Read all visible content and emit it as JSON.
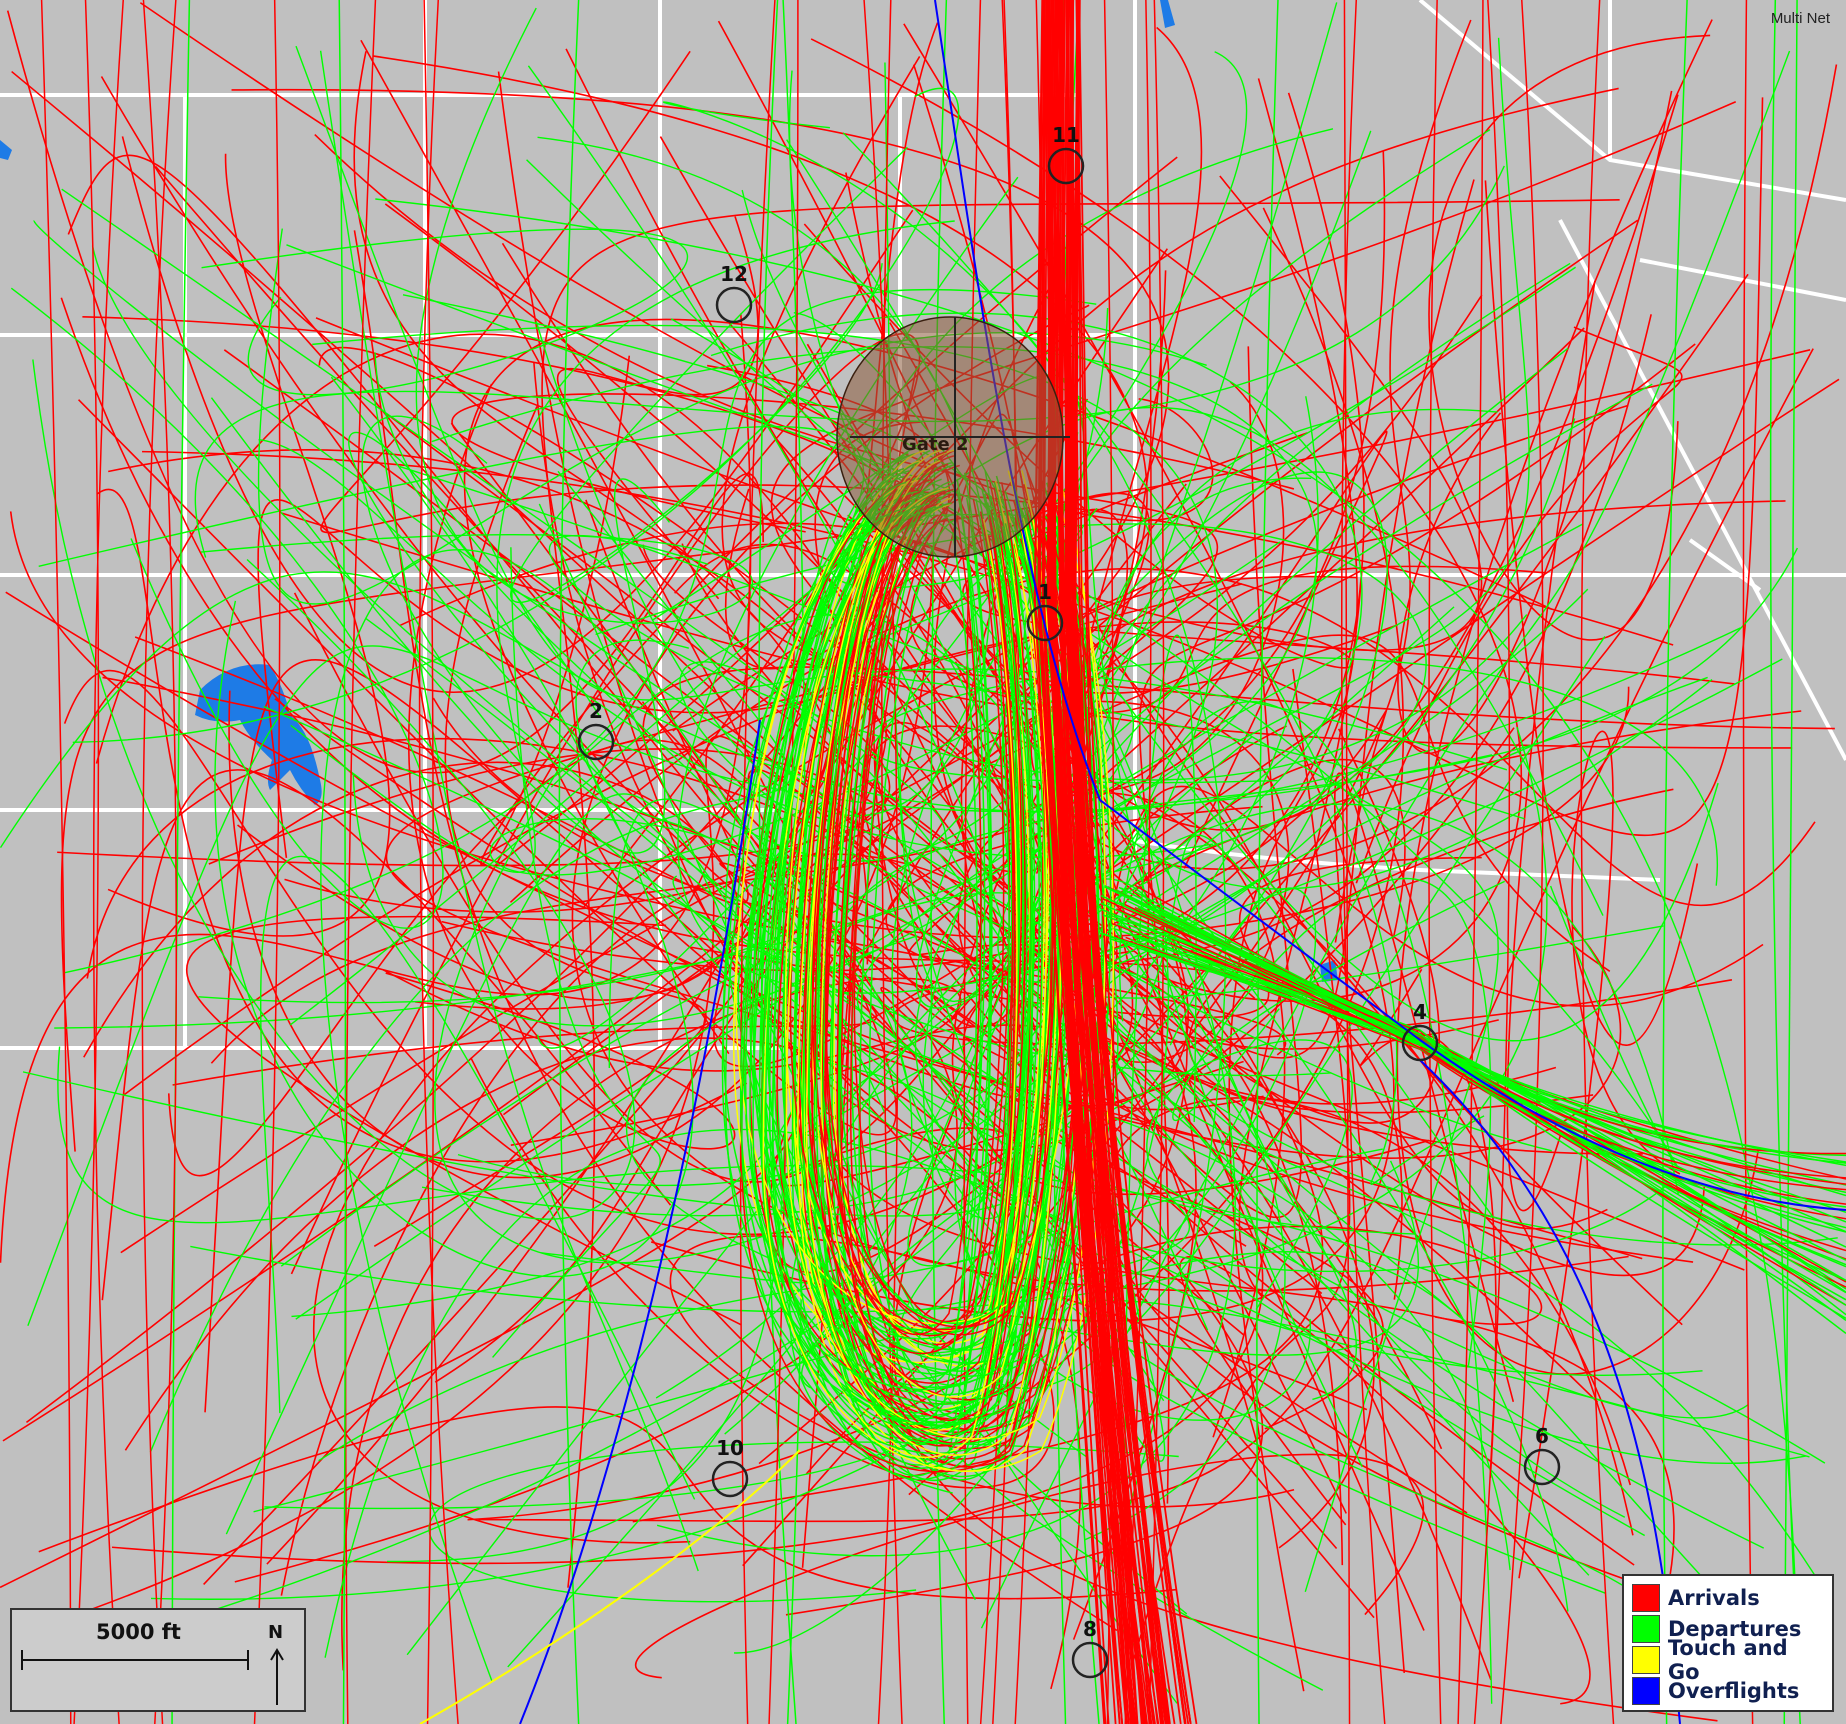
{
  "header": {
    "title": "Multi Net"
  },
  "gate": {
    "label": "Gate 2"
  },
  "sites": [
    {
      "id": "site-11",
      "label": "11"
    },
    {
      "id": "site-12",
      "label": "12"
    },
    {
      "id": "site-1",
      "label": "1"
    },
    {
      "id": "site-2",
      "label": "2"
    },
    {
      "id": "site-4",
      "label": "4"
    },
    {
      "id": "site-10",
      "label": "10"
    },
    {
      "id": "site-6",
      "label": "6"
    },
    {
      "id": "site-8",
      "label": "8"
    }
  ],
  "legend": {
    "items": [
      {
        "label": "Arrivals",
        "color": "#ff0000"
      },
      {
        "label": "Departures",
        "color": "#00ff00"
      },
      {
        "label": "Touch and Go",
        "color": "#ffff00"
      },
      {
        "label": "Overflights",
        "color": "#0000ff"
      }
    ]
  },
  "scale": {
    "label": "5000 ft",
    "north": "N"
  },
  "colors": {
    "background": "#c0c0c0",
    "roads": "#ffffff",
    "water": "#1e7be6",
    "arrivals": "#ff0000",
    "departures": "#00ff00",
    "touch_and_go": "#ffff00",
    "overflights": "#0000ff"
  }
}
